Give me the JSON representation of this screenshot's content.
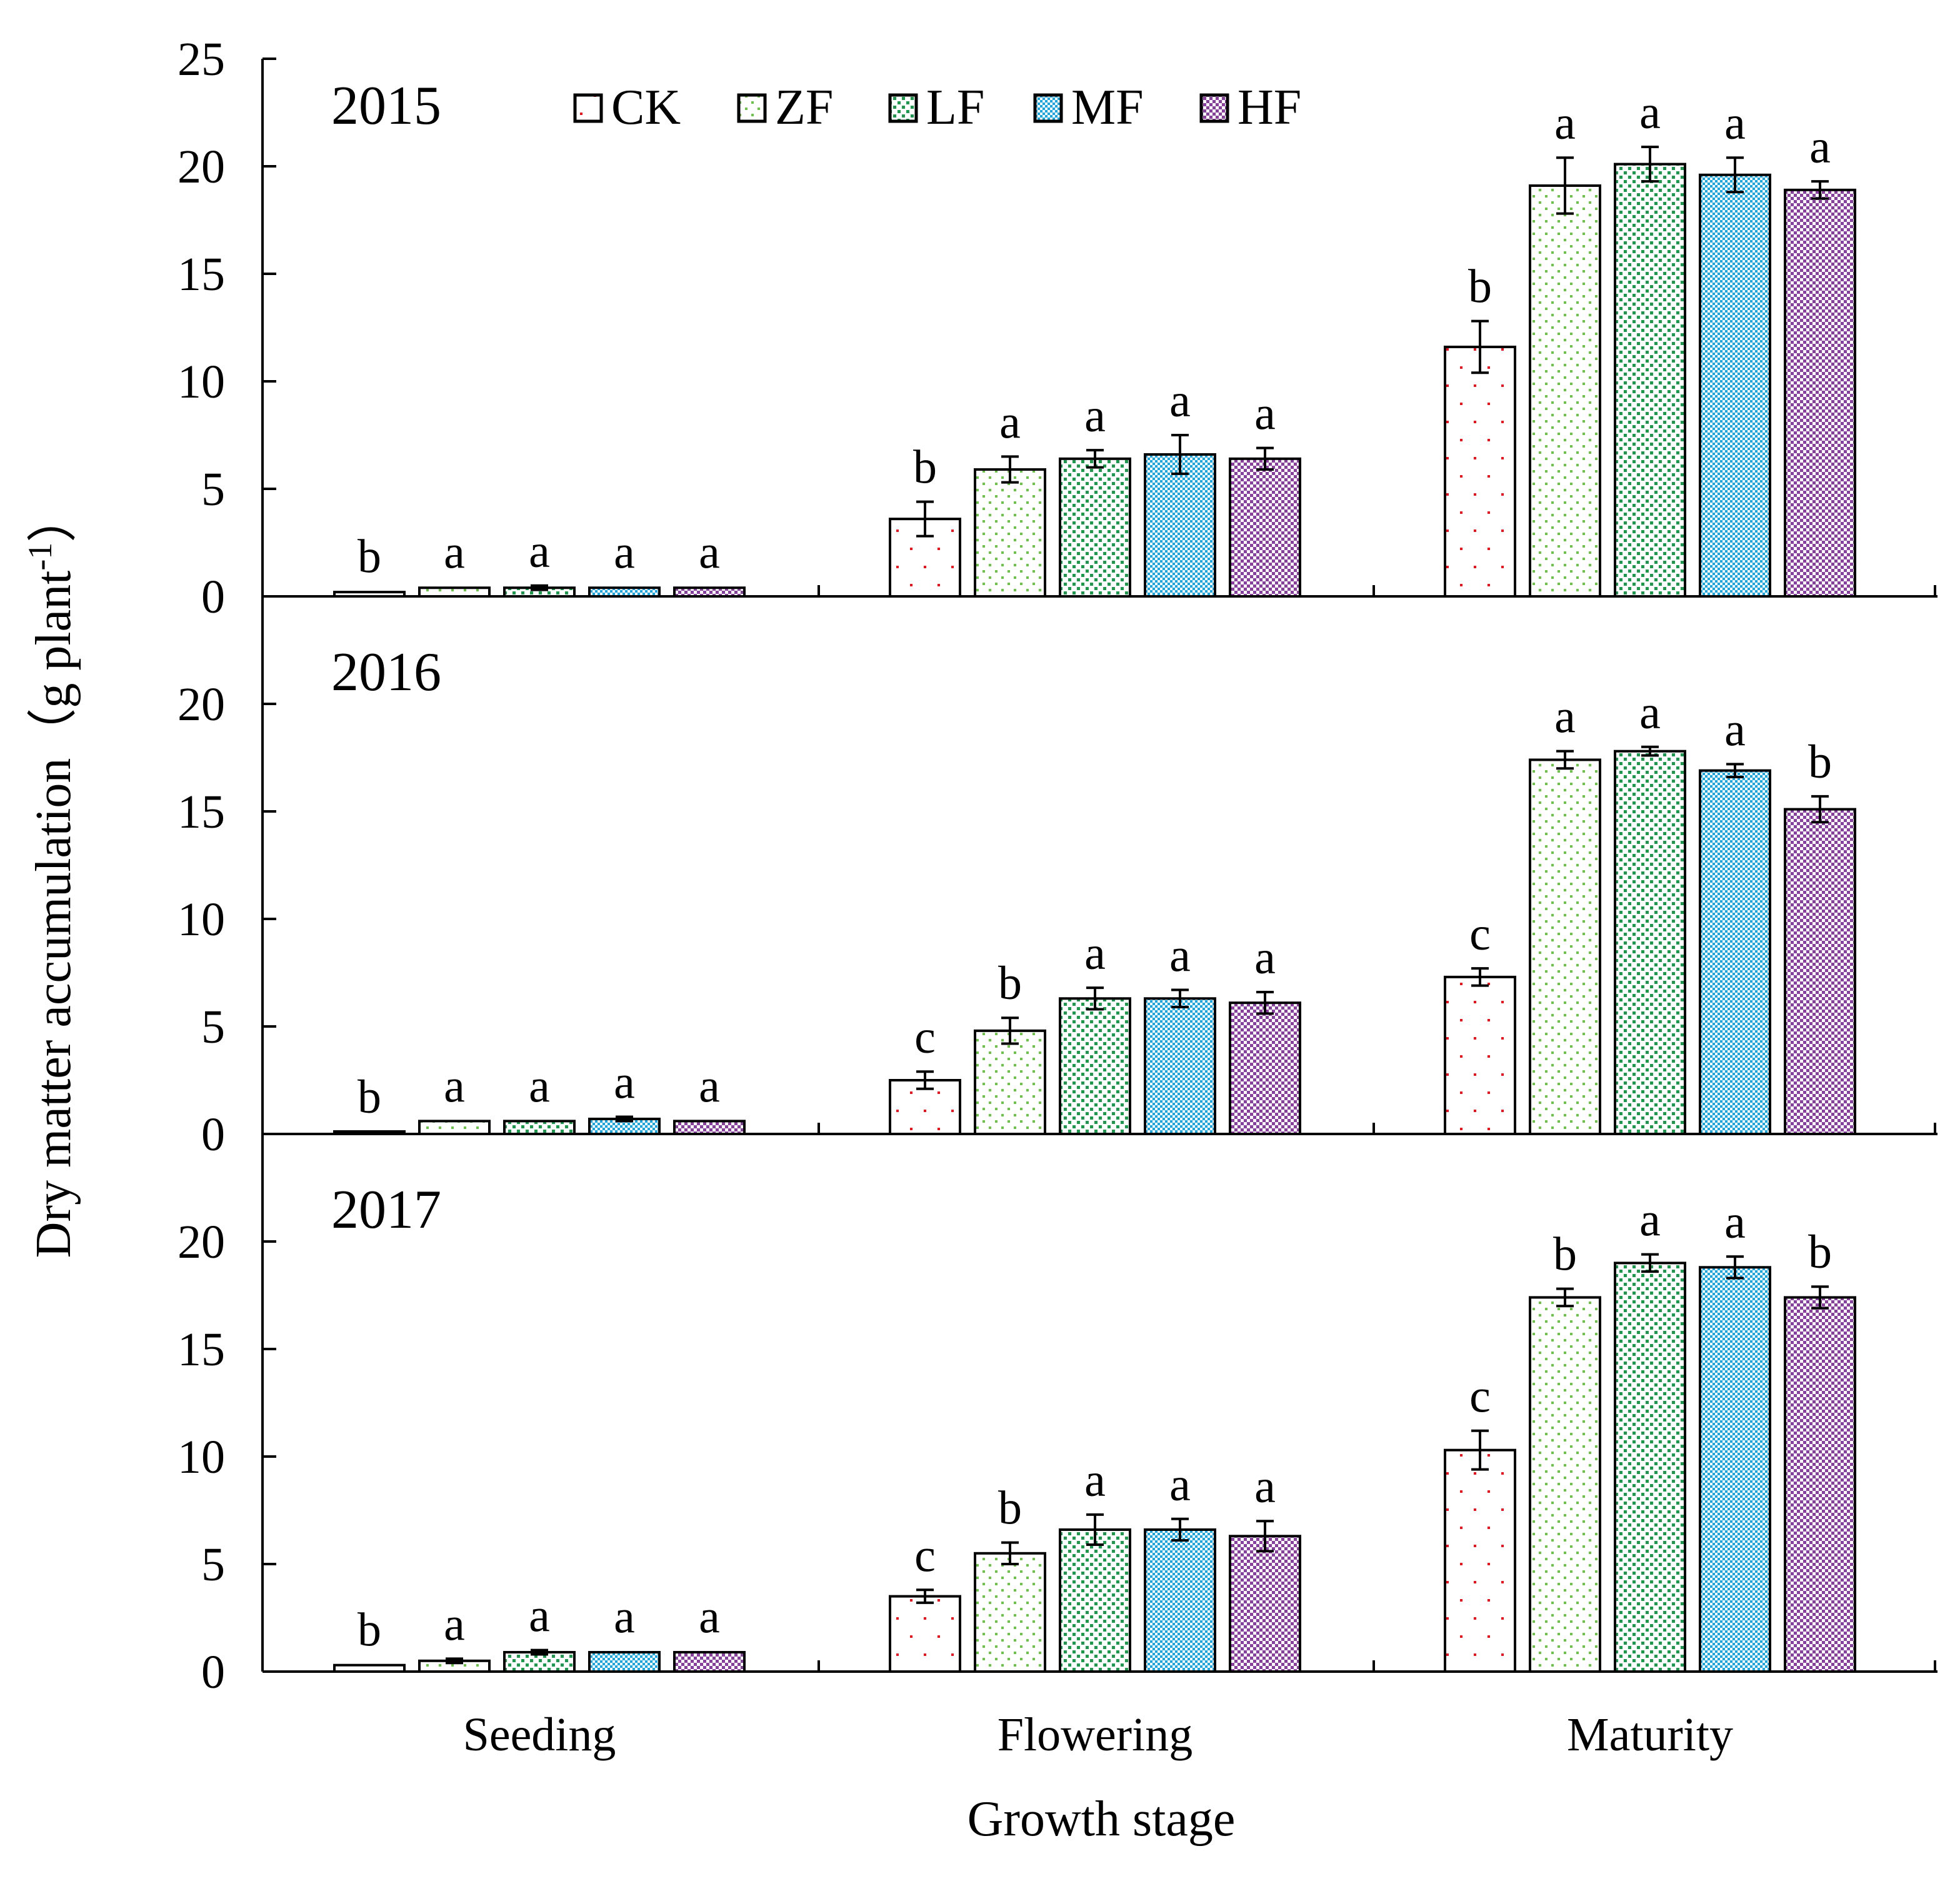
{
  "figure": {
    "y_axis_label": "Dry matter accumulation（g plant",
    "y_axis_label_sup": "-1",
    "y_axis_label_close": "）",
    "x_axis_label": "Growth stage"
  },
  "legend": [
    {
      "name": "CK",
      "color": "#e8141b",
      "pattern": "sparse-dots"
    },
    {
      "name": "ZF",
      "color": "#6cc24a",
      "pattern": "light-dots"
    },
    {
      "name": "LF",
      "color": "#1a9a4a",
      "pattern": "dense-dots"
    },
    {
      "name": "MF",
      "color": "#1aa7e0",
      "pattern": "fine-dots"
    },
    {
      "name": "HF",
      "color": "#8a3fa0",
      "pattern": "dense-dots"
    }
  ],
  "chart_data": [
    {
      "type": "bar",
      "title": "2015",
      "categories": [
        "Seeding",
        "Flowering",
        "Maturity"
      ],
      "ylim": [
        0,
        25
      ],
      "yticks": [
        0,
        5,
        10,
        15,
        20,
        25
      ],
      "series": [
        {
          "name": "CK",
          "values": [
            0.2,
            3.6,
            11.6
          ],
          "errors": [
            0.05,
            0.8,
            1.2
          ],
          "letters": [
            "b",
            "b",
            "b"
          ]
        },
        {
          "name": "ZF",
          "values": [
            0.4,
            5.9,
            19.1
          ],
          "errors": [
            0.05,
            0.6,
            1.3
          ],
          "letters": [
            "a",
            "a",
            "a"
          ]
        },
        {
          "name": "LF",
          "values": [
            0.4,
            6.4,
            20.1
          ],
          "errors": [
            0.1,
            0.4,
            0.8
          ],
          "letters": [
            "a",
            "a",
            "a"
          ]
        },
        {
          "name": "MF",
          "values": [
            0.4,
            6.6,
            19.6
          ],
          "errors": [
            0.05,
            0.9,
            0.8
          ],
          "letters": [
            "a",
            "a",
            "a"
          ]
        },
        {
          "name": "HF",
          "values": [
            0.4,
            6.4,
            18.9
          ],
          "errors": [
            0.05,
            0.5,
            0.4
          ],
          "letters": [
            "a",
            "a",
            "a"
          ]
        }
      ]
    },
    {
      "type": "bar",
      "title": "2016",
      "categories": [
        "Seeding",
        "Flowering",
        "Maturity"
      ],
      "ylim": [
        0,
        25
      ],
      "yticks": [
        0,
        5,
        10,
        15,
        20
      ],
      "series": [
        {
          "name": "CK",
          "values": [
            0.1,
            2.5,
            7.3
          ],
          "errors": [
            0.02,
            0.4,
            0.4
          ],
          "letters": [
            "b",
            "c",
            "c"
          ]
        },
        {
          "name": "ZF",
          "values": [
            0.6,
            4.8,
            17.4
          ],
          "errors": [
            0.03,
            0.6,
            0.4
          ],
          "letters": [
            "a",
            "b",
            "a"
          ]
        },
        {
          "name": "LF",
          "values": [
            0.6,
            6.3,
            17.8
          ],
          "errors": [
            0.03,
            0.5,
            0.2
          ],
          "letters": [
            "a",
            "a",
            "a"
          ]
        },
        {
          "name": "MF",
          "values": [
            0.7,
            6.3,
            16.9
          ],
          "errors": [
            0.1,
            0.4,
            0.3
          ],
          "letters": [
            "a",
            "a",
            "a"
          ]
        },
        {
          "name": "HF",
          "values": [
            0.6,
            6.1,
            15.1
          ],
          "errors": [
            0.03,
            0.5,
            0.6
          ],
          "letters": [
            "a",
            "a",
            "b"
          ]
        }
      ]
    },
    {
      "type": "bar",
      "title": "2017",
      "categories": [
        "Seeding",
        "Flowering",
        "Maturity"
      ],
      "ylim": [
        0,
        25
      ],
      "yticks": [
        0,
        5,
        10,
        15,
        20
      ],
      "series": [
        {
          "name": "CK",
          "values": [
            0.3,
            3.5,
            10.3
          ],
          "errors": [
            0.03,
            0.3,
            0.9
          ],
          "letters": [
            "b",
            "c",
            "c"
          ]
        },
        {
          "name": "ZF",
          "values": [
            0.5,
            5.5,
            17.4
          ],
          "errors": [
            0.1,
            0.5,
            0.4
          ],
          "letters": [
            "a",
            "b",
            "b"
          ]
        },
        {
          "name": "LF",
          "values": [
            0.9,
            6.6,
            19.0
          ],
          "errors": [
            0.1,
            0.7,
            0.4
          ],
          "letters": [
            "a",
            "a",
            "a"
          ]
        },
        {
          "name": "MF",
          "values": [
            0.9,
            6.6,
            18.8
          ],
          "errors": [
            0.05,
            0.5,
            0.5
          ],
          "letters": [
            "a",
            "a",
            "a"
          ]
        },
        {
          "name": "HF",
          "values": [
            0.9,
            6.3,
            17.4
          ],
          "errors": [
            0.05,
            0.7,
            0.5
          ],
          "letters": [
            "a",
            "a",
            "b"
          ]
        }
      ]
    }
  ]
}
